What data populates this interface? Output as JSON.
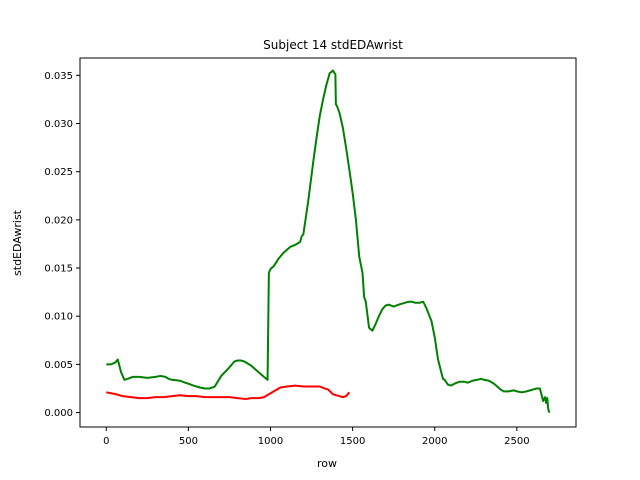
{
  "chart_data": {
    "type": "line",
    "title": "Subject 14 stdEDAwrist",
    "xlabel": "row",
    "ylabel": "stdEDAwrist",
    "xlim": [
      -160,
      2860
    ],
    "ylim": [
      -0.0015,
      0.0368
    ],
    "xticks": [
      0,
      500,
      1000,
      1500,
      2000,
      2500
    ],
    "xtick_labels": [
      "0",
      "500",
      "1000",
      "1500",
      "2000",
      "2500"
    ],
    "yticks": [
      0.0,
      0.005,
      0.01,
      0.015,
      0.02,
      0.025,
      0.03,
      0.035
    ],
    "ytick_labels": [
      "0.000",
      "0.005",
      "0.010",
      "0.015",
      "0.020",
      "0.025",
      "0.030",
      "0.035"
    ],
    "grid": false,
    "series": [
      {
        "color": "#008000",
        "x": [
          0,
          30,
          55,
          70,
          90,
          110,
          130,
          160,
          200,
          250,
          300,
          330,
          360,
          380,
          400,
          450,
          480,
          500,
          530,
          570,
          600,
          630,
          660,
          700,
          750,
          780,
          800,
          820,
          840,
          860,
          880,
          900,
          920,
          940,
          960,
          975,
          982,
          990,
          1000,
          1020,
          1050,
          1080,
          1100,
          1120,
          1150,
          1180,
          1190,
          1200,
          1230,
          1260,
          1280,
          1300,
          1320,
          1340,
          1360,
          1380,
          1395,
          1398,
          1405,
          1420,
          1440,
          1460,
          1480,
          1500,
          1520,
          1540,
          1560,
          1570,
          1580,
          1600,
          1620,
          1640,
          1660,
          1680,
          1700,
          1720,
          1750,
          1780,
          1800,
          1820,
          1840,
          1860,
          1880,
          1910,
          1930,
          1950,
          1980,
          2000,
          2020,
          2050,
          2060,
          2080,
          2100,
          2120,
          2150,
          2180,
          2200,
          2230,
          2260,
          2280,
          2300,
          2330,
          2360,
          2380,
          2400,
          2420,
          2450,
          2480,
          2500,
          2530,
          2560,
          2580,
          2600,
          2620,
          2640,
          2660,
          2665,
          2672,
          2678,
          2685,
          2690,
          2695,
          2700
        ],
        "y": [
          0.005,
          0.005,
          0.0052,
          0.0055,
          0.0042,
          0.0034,
          0.0035,
          0.0037,
          0.0037,
          0.0036,
          0.0037,
          0.0038,
          0.0037,
          0.0035,
          0.0034,
          0.0033,
          0.0031,
          0.003,
          0.0028,
          0.0026,
          0.0025,
          0.0025,
          0.0027,
          0.0038,
          0.0047,
          0.0053,
          0.0054,
          0.0054,
          0.0053,
          0.0051,
          0.0049,
          0.0046,
          0.0043,
          0.004,
          0.0037,
          0.0035,
          0.0034,
          0.0145,
          0.0149,
          0.0152,
          0.016,
          0.0166,
          0.0169,
          0.0172,
          0.0174,
          0.0177,
          0.0183,
          0.0185,
          0.022,
          0.026,
          0.0285,
          0.0308,
          0.0325,
          0.034,
          0.0352,
          0.0355,
          0.0351,
          0.032,
          0.0318,
          0.0311,
          0.0296,
          0.0275,
          0.0252,
          0.0228,
          0.02,
          0.0162,
          0.0145,
          0.012,
          0.0115,
          0.0088,
          0.0085,
          0.0092,
          0.01,
          0.0107,
          0.0111,
          0.0112,
          0.011,
          0.0112,
          0.0113,
          0.0114,
          0.0115,
          0.0115,
          0.0114,
          0.0114,
          0.0115,
          0.0108,
          0.0095,
          0.0078,
          0.0055,
          0.0035,
          0.0034,
          0.0029,
          0.0028,
          0.003,
          0.0032,
          0.0032,
          0.0031,
          0.0033,
          0.0034,
          0.0035,
          0.0034,
          0.0033,
          0.003,
          0.0027,
          0.0024,
          0.0022,
          0.0022,
          0.0023,
          0.0022,
          0.0021,
          0.0022,
          0.0023,
          0.0024,
          0.0025,
          0.0025,
          0.0012,
          0.0014,
          0.0016,
          0.001,
          0.0015,
          0.0005,
          0.0001,
          0.0
        ]
      },
      {
        "color": "#ff0000",
        "x": [
          0,
          30,
          60,
          100,
          150,
          200,
          250,
          300,
          350,
          400,
          450,
          500,
          550,
          600,
          650,
          700,
          750,
          800,
          850,
          880,
          900,
          930,
          960,
          980,
          1000,
          1030,
          1060,
          1100,
          1150,
          1200,
          1250,
          1300,
          1330,
          1350,
          1380,
          1400,
          1420,
          1440,
          1460,
          1480
        ],
        "y": [
          0.0021,
          0.002,
          0.0019,
          0.0017,
          0.0016,
          0.0015,
          0.0015,
          0.0016,
          0.0016,
          0.0017,
          0.0018,
          0.0017,
          0.0017,
          0.0016,
          0.0016,
          0.0016,
          0.0016,
          0.0015,
          0.0014,
          0.0015,
          0.0015,
          0.0015,
          0.0016,
          0.0018,
          0.002,
          0.0023,
          0.0026,
          0.0027,
          0.0028,
          0.0027,
          0.0027,
          0.0027,
          0.0025,
          0.0024,
          0.0019,
          0.0018,
          0.0017,
          0.0016,
          0.0017,
          0.0021
        ]
      }
    ]
  }
}
